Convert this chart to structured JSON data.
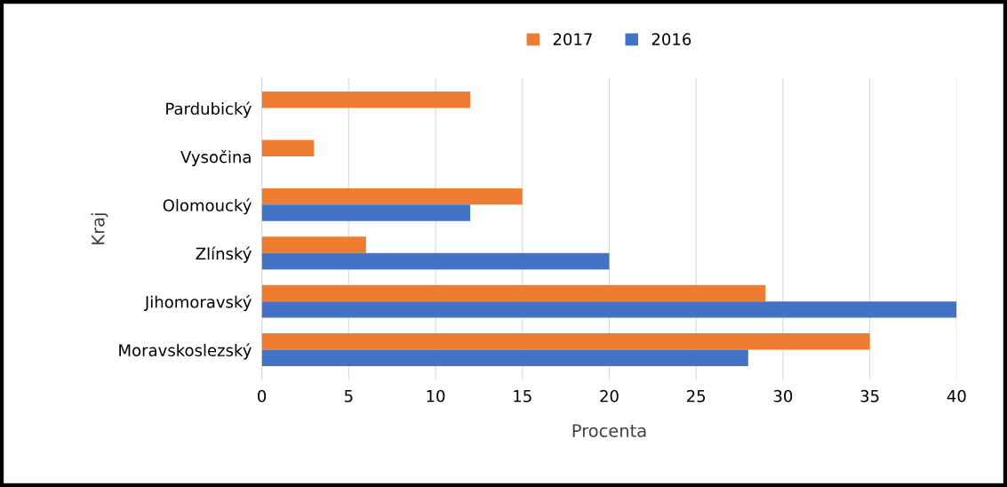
{
  "chart_data": {
    "type": "bar",
    "orientation": "horizontal",
    "xlabel": "Procenta",
    "ylabel": "Kraj",
    "categories": [
      "Pardubický",
      "Vysočina",
      "Olomoucký",
      "Zlínský",
      "Jihomoravský",
      "Moravskoslezský"
    ],
    "series": [
      {
        "name": "2017",
        "color": "#ed7d31",
        "values": [
          12,
          3,
          15,
          6,
          29,
          35
        ]
      },
      {
        "name": "2016",
        "color": "#4472c4",
        "values": [
          0,
          0,
          12,
          20,
          40,
          28
        ]
      }
    ],
    "xlim": [
      0,
      40
    ],
    "xticks": [
      0,
      5,
      10,
      15,
      20,
      25,
      30,
      35,
      40
    ],
    "grid": "x",
    "legend": "top"
  }
}
